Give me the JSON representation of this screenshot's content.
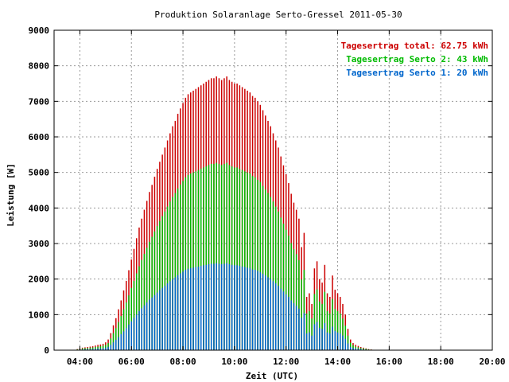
{
  "chart_data": {
    "type": "bar",
    "title": "Produktion Solaranlage Serto-Gressel 2011-05-30",
    "xlabel": "Zeit (UTC)",
    "ylabel": "Leistung [W]",
    "xlim": [
      3.0,
      20.0
    ],
    "ylim": [
      0,
      9000
    ],
    "grid": true,
    "legend_position": "top-right",
    "x_ticks": [
      "04:00",
      "06:00",
      "08:00",
      "10:00",
      "12:00",
      "14:00",
      "16:00",
      "18:00",
      "20:00"
    ],
    "x_tick_values": [
      4,
      6,
      8,
      10,
      12,
      14,
      16,
      18,
      20
    ],
    "y_ticks": [
      "0",
      "1000",
      "2000",
      "3000",
      "4000",
      "5000",
      "6000",
      "7000",
      "8000",
      "9000"
    ],
    "y_tick_values": [
      0,
      1000,
      2000,
      3000,
      4000,
      5000,
      6000,
      7000,
      8000,
      9000
    ],
    "interval_hours": 0.1,
    "x_start": 3.9,
    "series": [
      {
        "name": "Tagesertrag total: 62.75 kWh",
        "color": "#cc0000",
        "values": [
          30,
          50,
          70,
          80,
          90,
          100,
          110,
          130,
          150,
          160,
          180,
          220,
          300,
          480,
          700,
          900,
          1150,
          1400,
          1680,
          1950,
          2250,
          2550,
          2850,
          3150,
          3450,
          3700,
          3950,
          4200,
          4450,
          4650,
          4880,
          5100,
          5300,
          5500,
          5700,
          5900,
          6100,
          6300,
          6450,
          6650,
          6800,
          6950,
          7100,
          7200,
          7250,
          7300,
          7350,
          7400,
          7450,
          7500,
          7550,
          7600,
          7650,
          7650,
          7700,
          7650,
          7600,
          7650,
          7700,
          7600,
          7550,
          7500,
          7500,
          7450,
          7400,
          7350,
          7300,
          7250,
          7150,
          7100,
          7000,
          6900,
          6750,
          6600,
          6450,
          6300,
          6100,
          5900,
          5700,
          5450,
          5200,
          4950,
          4700,
          4400,
          4150,
          3950,
          3700,
          2900,
          3300,
          1500,
          1600,
          1300,
          2300,
          2500,
          2000,
          1900,
          2400,
          1600,
          1500,
          2100,
          1700,
          1600,
          1500,
          1300,
          1000,
          600,
          300,
          200,
          150,
          120,
          90,
          70,
          50,
          30,
          20,
          10
        ]
      },
      {
        "name": "Tagesertrag Serto 2: 43 kWh",
        "color": "#00bb00",
        "values": [
          20,
          35,
          50,
          55,
          60,
          70,
          75,
          90,
          100,
          110,
          125,
          150,
          200,
          330,
          480,
          620,
          790,
          960,
          1150,
          1340,
          1540,
          1750,
          1950,
          2160,
          2360,
          2540,
          2710,
          2880,
          3050,
          3190,
          3340,
          3490,
          3630,
          3770,
          3900,
          4040,
          4180,
          4310,
          4420,
          4550,
          4660,
          4760,
          4860,
          4930,
          4970,
          5000,
          5030,
          5070,
          5100,
          5140,
          5170,
          5210,
          5240,
          5240,
          5270,
          5240,
          5210,
          5240,
          5270,
          5210,
          5170,
          5140,
          5140,
          5100,
          5070,
          5030,
          5000,
          4970,
          4900,
          4860,
          4790,
          4730,
          4620,
          4520,
          4420,
          4310,
          4180,
          4040,
          3900,
          3730,
          3560,
          3390,
          3220,
          3010,
          2840,
          2700,
          2530,
          1990,
          2260,
          1030,
          1100,
          890,
          1580,
          1710,
          1370,
          1300,
          1640,
          1100,
          1030,
          1440,
          1160,
          1100,
          1030,
          890,
          690,
          410,
          210,
          140,
          100,
          80,
          60,
          50,
          35,
          20,
          14,
          7
        ]
      },
      {
        "name": "Tagesertrag Serto 1: 20 kWh",
        "color": "#0066cc",
        "values": [
          10,
          15,
          20,
          25,
          30,
          30,
          35,
          40,
          50,
          50,
          55,
          70,
          95,
          150,
          220,
          290,
          370,
          450,
          530,
          620,
          720,
          810,
          910,
          1000,
          1100,
          1180,
          1260,
          1340,
          1420,
          1480,
          1550,
          1620,
          1690,
          1750,
          1810,
          1880,
          1940,
          2000,
          2050,
          2110,
          2160,
          2210,
          2260,
          2290,
          2310,
          2320,
          2340,
          2350,
          2370,
          2390,
          2400,
          2420,
          2430,
          2430,
          2450,
          2430,
          2420,
          2430,
          2450,
          2420,
          2400,
          2390,
          2390,
          2370,
          2350,
          2340,
          2320,
          2310,
          2270,
          2260,
          2230,
          2190,
          2150,
          2100,
          2050,
          2000,
          1940,
          1880,
          1810,
          1730,
          1650,
          1570,
          1500,
          1400,
          1320,
          1250,
          1170,
          910,
          1040,
          470,
          500,
          410,
          730,
          790,
          630,
          600,
          760,
          500,
          470,
          660,
          540,
          500,
          470,
          410,
          320,
          190,
          90,
          60,
          50,
          40,
          30,
          20,
          15,
          10,
          6,
          3
        ]
      }
    ]
  }
}
